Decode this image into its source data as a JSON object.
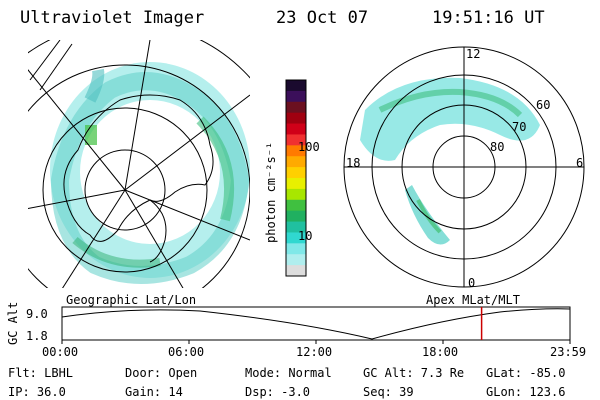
{
  "header": {
    "title": "Ultraviolet Imager",
    "date": "23 Oct 07",
    "time": "19:51:16 UT"
  },
  "colorbar": {
    "unit_label": "photon cm⁻²s⁻¹",
    "ticks": [
      "100",
      "10"
    ],
    "colors": [
      "#1a0a2e",
      "#3b0f5a",
      "#6b1020",
      "#a00010",
      "#d00018",
      "#f03030",
      "#ff7a00",
      "#ffaa00",
      "#ffd000",
      "#e8f000",
      "#a8e600",
      "#40c040",
      "#20b060",
      "#20c0a0",
      "#30d8d0",
      "#80e8e8",
      "#b0eeee",
      "#dddddd"
    ]
  },
  "left_map": {
    "caption": "Geographic Lat/Lon"
  },
  "right_map": {
    "caption": "Apex MLat/MLT",
    "mlt_labels": {
      "top": "12",
      "left": "18",
      "right": "6",
      "bottom": "0"
    },
    "lat_labels": [
      "60",
      "70",
      "80"
    ]
  },
  "timeline": {
    "axis_label": "GC Alt",
    "y_ticks": [
      "9.0",
      "1.8"
    ],
    "x_ticks": [
      "00:00",
      "06:00",
      "12:00",
      "18:00",
      "23:59"
    ],
    "marker_color": "#cc0000",
    "current_fraction": 0.826
  },
  "status": {
    "row1": {
      "filter": "Flt: LBHL",
      "door": "Door: Open",
      "mode": "Mode: Normal",
      "gc_alt": "GC Alt: 7.3 Re",
      "glat": "GLat: -85.0"
    },
    "row2": {
      "ip": "IP: 36.0",
      "gain": "Gain: 14",
      "dsp": "Dsp:   -3.0",
      "seq": "Seq: 39",
      "glon": "GLon: 123.6"
    }
  }
}
